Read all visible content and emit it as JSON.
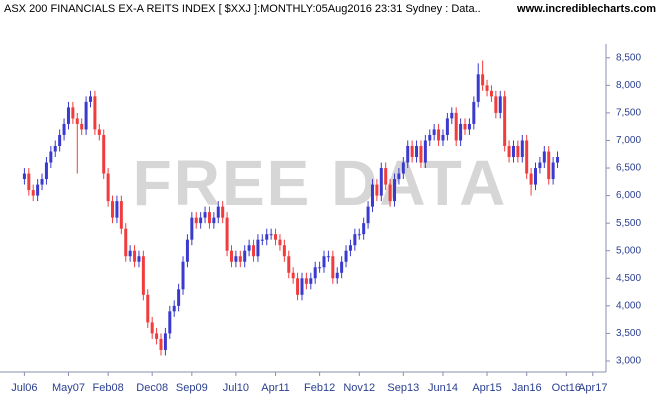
{
  "chart_data": {
    "type": "candlestick",
    "title": "ASX 200 FINANCIALS EX-A REITS INDEX [ $XXJ ]:MONTHLY:05Aug2016 23:31 Sydney : Data..",
    "source": "www.incrediblecharts.com",
    "watermark": "FREE DATA",
    "up_color": "#3a3acf",
    "down_color": "#f03c3c",
    "x": [
      "2006-07",
      "2006-08",
      "2006-09",
      "2006-10",
      "2006-11",
      "2006-12",
      "2007-01",
      "2007-02",
      "2007-03",
      "2007-04",
      "2007-05",
      "2007-06",
      "2007-07",
      "2007-08",
      "2007-09",
      "2007-10",
      "2007-11",
      "2007-12",
      "2008-01",
      "2008-02",
      "2008-03",
      "2008-04",
      "2008-05",
      "2008-06",
      "2008-07",
      "2008-08",
      "2008-09",
      "2008-10",
      "2008-11",
      "2008-12",
      "2009-01",
      "2009-02",
      "2009-03",
      "2009-04",
      "2009-05",
      "2009-06",
      "2009-07",
      "2009-08",
      "2009-09",
      "2009-10",
      "2009-11",
      "2009-12",
      "2010-01",
      "2010-02",
      "2010-03",
      "2010-04",
      "2010-05",
      "2010-06",
      "2010-07",
      "2010-08",
      "2010-09",
      "2010-10",
      "2010-11",
      "2010-12",
      "2011-01",
      "2011-02",
      "2011-03",
      "2011-04",
      "2011-05",
      "2011-06",
      "2011-07",
      "2011-08",
      "2011-09",
      "2011-10",
      "2011-11",
      "2011-12",
      "2012-01",
      "2012-02",
      "2012-03",
      "2012-04",
      "2012-05",
      "2012-06",
      "2012-07",
      "2012-08",
      "2012-09",
      "2012-10",
      "2012-11",
      "2012-12",
      "2013-01",
      "2013-02",
      "2013-03",
      "2013-04",
      "2013-05",
      "2013-06",
      "2013-07",
      "2013-08",
      "2013-09",
      "2013-10",
      "2013-11",
      "2013-12",
      "2014-01",
      "2014-02",
      "2014-03",
      "2014-04",
      "2014-05",
      "2014-06",
      "2014-07",
      "2014-08",
      "2014-09",
      "2014-10",
      "2014-11",
      "2014-12",
      "2015-01",
      "2015-02",
      "2015-03",
      "2015-04",
      "2015-05",
      "2015-06",
      "2015-07",
      "2015-08",
      "2015-09",
      "2015-10",
      "2015-11",
      "2015-12",
      "2016-01",
      "2016-02",
      "2016-03",
      "2016-04",
      "2016-05",
      "2016-06",
      "2016-07",
      "2016-08"
    ],
    "open": [
      6300,
      6400,
      6100,
      6000,
      6200,
      6300,
      6600,
      6800,
      6900,
      7100,
      7300,
      7600,
      7400,
      7300,
      7200,
      7700,
      7800,
      7200,
      7100,
      6400,
      5900,
      5600,
      5900,
      5400,
      4900,
      5000,
      4800,
      4900,
      4200,
      3700,
      3500,
      3400,
      3200,
      3500,
      3900,
      4000,
      4300,
      4800,
      5200,
      5600,
      5500,
      5600,
      5700,
      5500,
      5600,
      5800,
      5600,
      5000,
      4800,
      4900,
      4800,
      5000,
      5100,
      4900,
      5200,
      5200,
      5300,
      5300,
      5200,
      5100,
      4900,
      4600,
      4500,
      4200,
      4500,
      4400,
      4500,
      4700,
      4700,
      4900,
      4900,
      4500,
      4600,
      4800,
      5000,
      5100,
      5300,
      5300,
      5500,
      5800,
      6200,
      6000,
      6500,
      6200,
      5900,
      6300,
      6400,
      6600,
      6900,
      6700,
      6900,
      6600,
      7000,
      7100,
      7200,
      7000,
      7100,
      7400,
      7500,
      7000,
      7300,
      7200,
      7300,
      7700,
      8200,
      8000,
      7900,
      7800,
      7500,
      7800,
      6900,
      6700,
      6900,
      6700,
      7000,
      6400,
      6200,
      6500,
      6600,
      6800,
      6300,
      6600
    ],
    "high": [
      6500,
      6500,
      6200,
      6300,
      6400,
      6700,
      6900,
      7000,
      7200,
      7400,
      7700,
      7700,
      7500,
      7400,
      7800,
      7900,
      7900,
      7300,
      7200,
      6500,
      6000,
      6000,
      6000,
      5500,
      5100,
      5100,
      5000,
      5000,
      4300,
      3800,
      3600,
      3500,
      3600,
      4000,
      4100,
      4400,
      4900,
      5300,
      5700,
      5700,
      5700,
      5800,
      5800,
      5700,
      5900,
      5900,
      5700,
      5100,
      5000,
      5000,
      5100,
      5200,
      5200,
      5300,
      5300,
      5400,
      5400,
      5400,
      5300,
      5200,
      5000,
      4700,
      4600,
      4600,
      4600,
      4600,
      4800,
      4800,
      5000,
      5000,
      5000,
      4700,
      4900,
      5100,
      5200,
      5400,
      5400,
      5600,
      5900,
      6300,
      6300,
      6600,
      6600,
      6300,
      6400,
      6500,
      6700,
      7000,
      7000,
      7000,
      7000,
      7100,
      7200,
      7300,
      7300,
      7200,
      7500,
      7600,
      7600,
      7400,
      7400,
      7400,
      7800,
      8400,
      8450,
      8100,
      8000,
      7900,
      7900,
      7900,
      7000,
      7000,
      7000,
      7100,
      7100,
      6500,
      6600,
      6700,
      6900,
      6900,
      6700,
      6800
    ],
    "low": [
      6200,
      6000,
      5900,
      5900,
      6100,
      6200,
      6500,
      6700,
      6800,
      7000,
      7200,
      7300,
      6400,
      7100,
      7100,
      7600,
      7100,
      7000,
      6300,
      5800,
      5500,
      5500,
      5300,
      4800,
      4800,
      4700,
      4700,
      4100,
      3600,
      3400,
      3300,
      3100,
      3100,
      3400,
      3800,
      3900,
      4200,
      4700,
      5100,
      5400,
      5400,
      5500,
      5400,
      5400,
      5500,
      5500,
      4900,
      4700,
      4700,
      4700,
      4700,
      4900,
      4800,
      4800,
      5100,
      5100,
      5200,
      5100,
      5000,
      4800,
      4500,
      4400,
      4100,
      4100,
      4300,
      4300,
      4400,
      4600,
      4600,
      4800,
      4400,
      4400,
      4500,
      4700,
      4900,
      5000,
      5200,
      5200,
      5400,
      5700,
      5900,
      5900,
      6100,
      5800,
      5800,
      6200,
      6300,
      6500,
      6600,
      6600,
      6500,
      6500,
      6900,
      7000,
      6900,
      6900,
      7000,
      7300,
      6900,
      6900,
      7100,
      7100,
      7200,
      7600,
      7900,
      7800,
      7700,
      7400,
      7400,
      6800,
      6600,
      6600,
      6600,
      6600,
      6300,
      6000,
      6100,
      6400,
      6500,
      6200,
      6200,
      6500
    ],
    "close": [
      6400,
      6100,
      6000,
      6200,
      6300,
      6600,
      6800,
      6900,
      7100,
      7300,
      7600,
      7400,
      7300,
      7200,
      7700,
      7800,
      7200,
      7100,
      6400,
      5900,
      5600,
      5900,
      5400,
      4900,
      5000,
      4800,
      4900,
      4200,
      3700,
      3500,
      3400,
      3200,
      3500,
      3900,
      4000,
      4300,
      4800,
      5200,
      5600,
      5500,
      5600,
      5700,
      5500,
      5600,
      5800,
      5600,
      5000,
      4800,
      4900,
      4800,
      5000,
      5100,
      4900,
      5200,
      5200,
      5300,
      5300,
      5200,
      5100,
      4900,
      4600,
      4500,
      4200,
      4500,
      4400,
      4500,
      4700,
      4700,
      4900,
      4900,
      4500,
      4600,
      4800,
      5000,
      5100,
      5300,
      5300,
      5500,
      5800,
      6200,
      6000,
      6500,
      6200,
      5900,
      6300,
      6400,
      6600,
      6900,
      6700,
      6900,
      6600,
      7000,
      7100,
      7200,
      7000,
      7100,
      7400,
      7500,
      7000,
      7300,
      7200,
      7300,
      7700,
      8200,
      8000,
      7900,
      7800,
      7500,
      7800,
      6900,
      6700,
      6900,
      6700,
      7000,
      6400,
      6200,
      6500,
      6600,
      6800,
      6300,
      6600,
      6700
    ],
    "ylim": [
      2800,
      8750
    ],
    "yticks": [
      {
        "value": 3000,
        "label": "3,000"
      },
      {
        "value": 3500,
        "label": "3,500"
      },
      {
        "value": 4000,
        "label": "4,000"
      },
      {
        "value": 4500,
        "label": "4,500"
      },
      {
        "value": 5000,
        "label": "5,000"
      },
      {
        "value": 5500,
        "label": "5,500"
      },
      {
        "value": 6000,
        "label": "6,000"
      },
      {
        "value": 6500,
        "label": "6,500"
      },
      {
        "value": 7000,
        "label": "7,000"
      },
      {
        "value": 7500,
        "label": "7,500"
      },
      {
        "value": 8000,
        "label": "8,000"
      },
      {
        "value": 8500,
        "label": "8,500"
      }
    ],
    "xlim": [
      "2006-06",
      "2017-07"
    ],
    "xticks": [
      {
        "value": "2006-07",
        "label": "Jul06"
      },
      {
        "value": "2007-05",
        "label": "May07"
      },
      {
        "value": "2008-02",
        "label": "Feb08"
      },
      {
        "value": "2008-12",
        "label": "Dec08"
      },
      {
        "value": "2009-09",
        "label": "Sep09"
      },
      {
        "value": "2010-07",
        "label": "Jul10"
      },
      {
        "value": "2011-04",
        "label": "Apr11"
      },
      {
        "value": "2012-02",
        "label": "Feb12"
      },
      {
        "value": "2012-11",
        "label": "Nov12"
      },
      {
        "value": "2013-09",
        "label": "Sep13"
      },
      {
        "value": "2014-06",
        "label": "Jun14"
      },
      {
        "value": "2015-04",
        "label": "Apr15"
      },
      {
        "value": "2016-01",
        "label": "Jan16"
      },
      {
        "value": "2016-10",
        "label": "Oct16"
      },
      {
        "value": "2017-04",
        "label": "Apr17"
      }
    ]
  }
}
